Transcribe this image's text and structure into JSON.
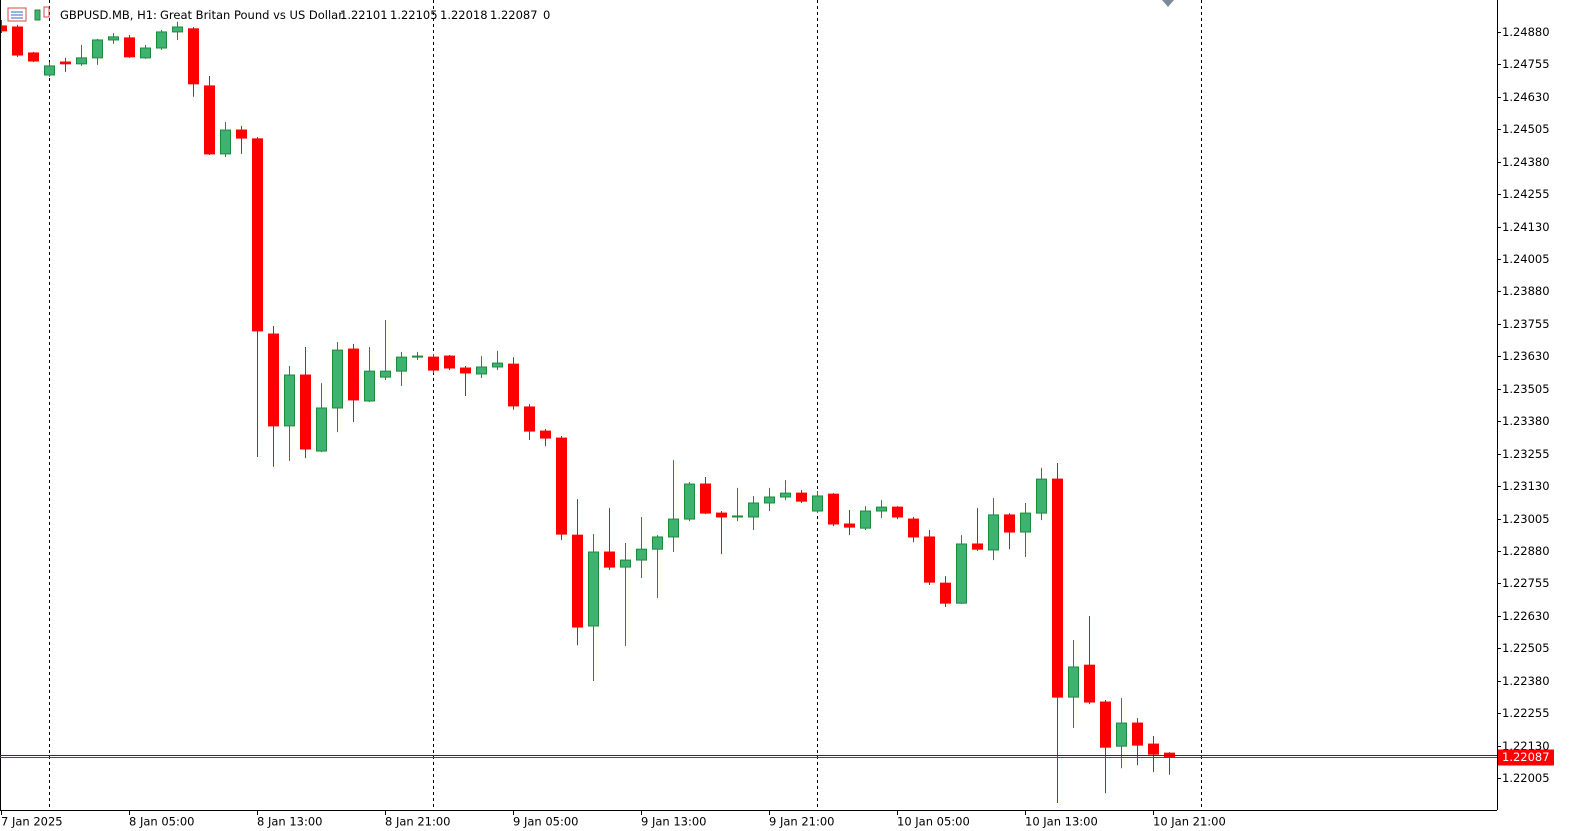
{
  "chart_data": {
    "type": "candlestick",
    "symbol": "GBPUSD.MB, H1:",
    "description": "Great Britan Pound vs US Dollar",
    "spread": 0,
    "up_color": "#3cb371",
    "up_edge": "#1f8a3a",
    "down_color": "#ff0000",
    "categories": [
      "7 Jan 2025",
      null,
      null,
      null,
      null,
      null,
      null,
      null,
      "8 Jan 05:00",
      null,
      null,
      null,
      null,
      null,
      null,
      null,
      "8 Jan 13:00",
      null,
      null,
      null,
      null,
      null,
      null,
      null,
      "8 Jan 21:00",
      null,
      null,
      null,
      null,
      null,
      null,
      null,
      "9 Jan 05:00",
      null,
      null,
      null,
      null,
      null,
      null,
      null,
      "9 Jan 13:00",
      null,
      null,
      null,
      null,
      null,
      null,
      null,
      "9 Jan 21:00",
      null,
      null,
      null,
      null,
      null,
      null,
      null,
      "10 Jan 05:00",
      null,
      null,
      null,
      null,
      null,
      null,
      null,
      "10 Jan 13:00",
      null,
      null,
      null,
      null,
      null,
      null,
      null,
      "10 Jan 21:00",
      null
    ],
    "open": [
      1.24903,
      1.24899,
      1.24799,
      1.24714,
      1.24764,
      1.24757,
      1.2478,
      1.24849,
      1.24857,
      1.2478,
      1.24818,
      1.2488,
      1.24892,
      1.24672,
      1.2441,
      1.24502,
      1.24468,
      1.23716,
      1.23362,
      1.23558,
      1.23265,
      1.23431,
      1.23658,
      1.23458,
      1.2355,
      1.23573,
      1.23627,
      1.23627,
      1.23631,
      1.23585,
      1.23562,
      1.23589,
      1.236,
      1.23435,
      1.23342,
      1.23315,
      1.22941,
      1.22591,
      1.22876,
      1.22818,
      1.22845,
      1.22887,
      1.22934,
      1.23003,
      1.23138,
      1.23026,
      1.23011,
      1.23011,
      1.23065,
      1.23088,
      1.23103,
      1.23034,
      1.23099,
      1.22984,
      1.22968,
      1.23034,
      1.23049,
      1.23003,
      1.22934,
      1.22756,
      1.22679,
      1.22907,
      1.22884,
      1.23019,
      1.22953,
      1.23026,
      1.23157,
      1.22317,
      1.2244,
      1.22298,
      1.22128,
      1.22217,
      1.22136,
      1.22101
    ],
    "high": [
      1.24926,
      1.24907,
      1.24803,
      1.24764,
      1.2478,
      1.2483,
      1.24853,
      1.24876,
      1.24868,
      1.2483,
      1.24888,
      1.24919,
      1.24899,
      1.2471,
      1.24533,
      1.24518,
      1.24475,
      1.23747,
      1.23593,
      1.23666,
      1.23527,
      1.23685,
      1.23678,
      1.23666,
      1.2377,
      1.23647,
      1.23647,
      1.23639,
      1.23635,
      1.23593,
      1.23631,
      1.23651,
      1.23627,
      1.23446,
      1.2335,
      1.23323,
      1.2308,
      1.22945,
      1.23045,
      1.22911,
      1.23011,
      1.22941,
      1.2323,
      1.23146,
      1.23165,
      1.23034,
      1.23123,
      1.23092,
      1.23123,
      1.23153,
      1.23115,
      1.23111,
      1.23103,
      1.23038,
      1.23053,
      1.23076,
      1.23053,
      1.23011,
      1.22961,
      1.22783,
      1.22941,
      1.23045,
      1.23084,
      1.23026,
      1.23065,
      1.232,
      1.23219,
      1.22537,
      1.22629,
      1.22306,
      1.22313,
      1.22236,
      1.22167,
      1.22105
    ],
    "low": [
      1.24876,
      1.24784,
      1.24764,
      1.24707,
      1.24726,
      1.24749,
      1.24753,
      1.24834,
      1.2478,
      1.24776,
      1.24811,
      1.24849,
      1.2463,
      1.24406,
      1.24398,
      1.2441,
      1.23242,
      1.23204,
      1.23227,
      1.23238,
      1.23261,
      1.23338,
      1.23377,
      1.23454,
      1.23539,
      1.23516,
      1.23616,
      1.23566,
      1.23577,
      1.23477,
      1.23547,
      1.23577,
      1.23424,
      1.23308,
      1.23284,
      1.22922,
      1.22517,
      1.22379,
      1.22807,
      1.22514,
      1.22776,
      1.22699,
      1.22876,
      1.22995,
      1.23022,
      1.22868,
      1.22995,
      1.22961,
      1.23034,
      1.23076,
      1.23065,
      1.23026,
      1.22976,
      1.22941,
      1.22961,
      1.23007,
      1.23003,
      1.22914,
      1.22749,
      1.22664,
      1.22676,
      1.2288,
      1.22845,
      1.22887,
      1.22857,
      1.22999,
      1.21909,
      1.22198,
      1.2229,
      1.21947,
      1.22043,
      1.22055,
      1.22028,
      1.22018
    ],
    "close": [
      1.24884,
      1.24791,
      1.24768,
      1.24749,
      1.24757,
      1.2478,
      1.24849,
      1.24861,
      1.24784,
      1.24818,
      1.2488,
      1.24899,
      1.2468,
      1.2441,
      1.24502,
      1.24471,
      1.23728,
      1.23362,
      1.23558,
      1.23273,
      1.23431,
      1.23654,
      1.23462,
      1.23573,
      1.23573,
      1.23627,
      1.23631,
      1.23577,
      1.23585,
      1.23566,
      1.23589,
      1.23604,
      1.23439,
      1.23342,
      1.23315,
      1.22945,
      1.22587,
      1.22876,
      1.22818,
      1.22845,
      1.22887,
      1.22934,
      1.23003,
      1.23138,
      1.23026,
      1.23011,
      1.23015,
      1.23065,
      1.23088,
      1.23103,
      1.23072,
      1.23092,
      1.22984,
      1.22972,
      1.23034,
      1.23049,
      1.23011,
      1.22934,
      1.2276,
      1.22679,
      1.22907,
      1.22887,
      1.23019,
      1.22953,
      1.23026,
      1.23157,
      1.22317,
      1.22433,
      1.22298,
      1.22124,
      1.22217,
      1.22132,
      1.22097,
      1.22087
    ],
    "ylim": [
      1.21882,
      1.25003
    ],
    "yticks": [
      {
        "value": 1.2488,
        "label": "1.24880"
      },
      {
        "value": 1.24755,
        "label": "1.24755"
      },
      {
        "value": 1.2463,
        "label": "1.24630"
      },
      {
        "value": 1.24505,
        "label": "1.24505"
      },
      {
        "value": 1.2438,
        "label": "1.24380"
      },
      {
        "value": 1.24255,
        "label": "1.24255"
      },
      {
        "value": 1.2413,
        "label": "1.24130"
      },
      {
        "value": 1.24005,
        "label": "1.24005"
      },
      {
        "value": 1.2388,
        "label": "1.23880"
      },
      {
        "value": 1.23755,
        "label": "1.23755"
      },
      {
        "value": 1.2363,
        "label": "1.23630"
      },
      {
        "value": 1.23505,
        "label": "1.23505"
      },
      {
        "value": 1.2338,
        "label": "1.23380"
      },
      {
        "value": 1.23255,
        "label": "1.23255"
      },
      {
        "value": 1.2313,
        "label": "1.23130"
      },
      {
        "value": 1.23005,
        "label": "1.23005"
      },
      {
        "value": 1.2288,
        "label": "1.22880"
      },
      {
        "value": 1.22755,
        "label": "1.22755"
      },
      {
        "value": 1.2263,
        "label": "1.22630"
      },
      {
        "value": 1.22505,
        "label": "1.22505"
      },
      {
        "value": 1.2238,
        "label": "1.22380"
      },
      {
        "value": 1.22255,
        "label": "1.22255"
      },
      {
        "value": 1.2213,
        "label": "1.22130"
      },
      {
        "value": 1.22005,
        "label": "1.22005"
      }
    ]
  }
}
